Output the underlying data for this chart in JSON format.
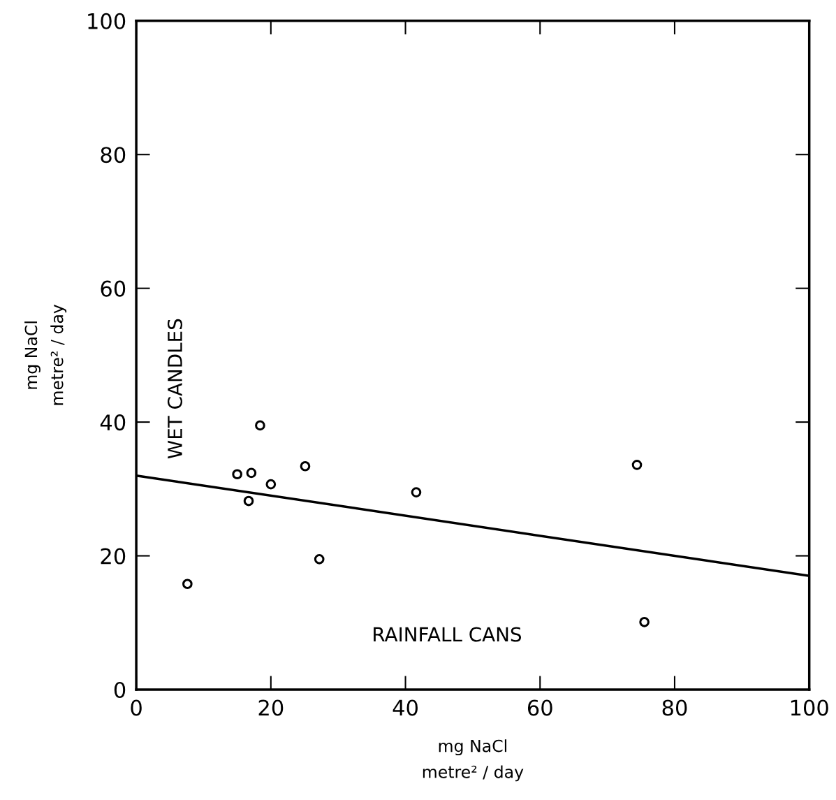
{
  "chart_data": {
    "type": "scatter",
    "xlabel": "mg NaCl\nmetre² / day",
    "ylabel": "mg NaCl\nmetre² / day",
    "annotations": [
      "WET CANDLES",
      "RAINFALL CANS"
    ],
    "series": [
      {
        "color": "#000000",
        "marker": "circle",
        "x": [
          7.6,
          15.0,
          17.1,
          16.7,
          18.4,
          20.0,
          25.1,
          27.2,
          41.6,
          74.4,
          75.5
        ],
        "values": [
          15.8,
          32.2,
          32.4,
          28.2,
          39.5,
          30.7,
          33.4,
          19.5,
          29.5,
          33.6,
          10.1
        ]
      },
      {
        "type": "line",
        "color": "#000000",
        "x": [
          0,
          100
        ],
        "values": [
          32,
          17
        ]
      }
    ],
    "xlim": [
      0,
      100
    ],
    "ylim": [
      0,
      100
    ],
    "xticks": [
      0,
      20,
      40,
      60,
      80,
      100
    ],
    "yticks": [
      0,
      20,
      40,
      60,
      80,
      100
    ],
    "grid": false,
    "legend": false
  }
}
